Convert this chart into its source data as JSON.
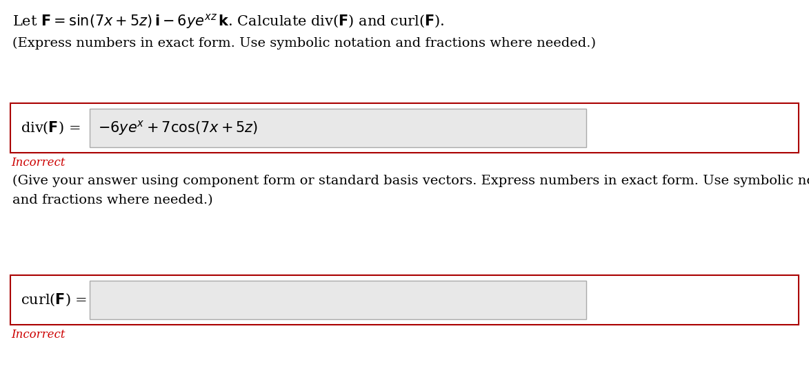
{
  "bg_color": "#ffffff",
  "title_line1": "Let $\\mathbf{F} = \\sin(7x + 5z)\\,\\mathbf{i} - 6ye^{xz}\\,\\mathbf{k}$. Calculate div($\\mathbf{F}$) and curl($\\mathbf{F}$).",
  "subtitle": "(Express numbers in exact form. Use symbolic notation and fractions where needed.)",
  "div_label": "div($\\mathbf{F}$) =",
  "div_answer": "$-6ye^{x} + 7\\cos(7x + 5z)$",
  "incorrect_color": "#cc0000",
  "incorrect_text": "Incorrect",
  "give_answer_text1": "(Give your answer using component form or standard basis vectors. Express numbers in exact form. Use symbolic notation",
  "give_answer_text2": "and fractions where needed.)",
  "curl_label": "curl($\\mathbf{F}$) =",
  "curl_answer": "",
  "box_border_color": "#aa0000",
  "input_bg_color": "#e8e8e8",
  "input_border_color": "#aaaaaa",
  "text_color": "#000000",
  "font_size_title": 15,
  "font_size_body": 14,
  "font_size_label": 15,
  "font_size_incorrect": 12
}
